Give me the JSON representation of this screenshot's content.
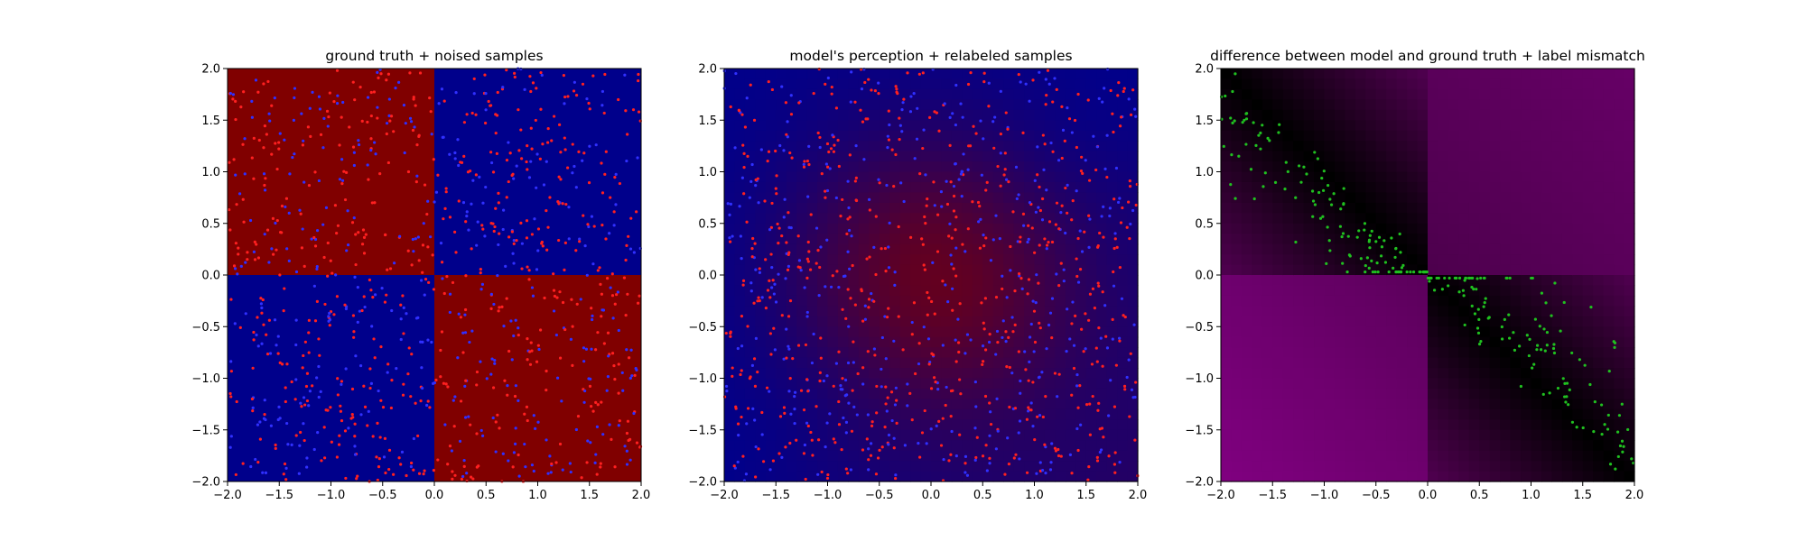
{
  "figure": {
    "background": "#ffffff"
  },
  "chart_data": [
    {
      "type": "heatmap",
      "title": "ground truth + noised samples",
      "xlim": [
        -2.0,
        2.0
      ],
      "ylim": [
        -2.0,
        2.0
      ],
      "x_ticks": [
        "−2.0",
        "−1.5",
        "−1.0",
        "−0.5",
        "0.0",
        "0.5",
        "1.0",
        "1.5",
        "2.0"
      ],
      "y_ticks": [
        "−2.0",
        "−1.5",
        "−1.0",
        "−0.5",
        "0.0",
        "0.5",
        "1.0",
        "1.5",
        "2.0"
      ],
      "grid": false,
      "background": {
        "kind": "checkerboard",
        "description_values": {
          "x<0,y>0": "red",
          "x>0,y>0": "blue",
          "x<0,y<0": "blue",
          "x>0,y<0": "red"
        },
        "colors": {
          "red": "#800000",
          "blue": "#00008b"
        }
      },
      "samples": {
        "count": 1000,
        "colors": [
          "#ff2020",
          "#3030ff"
        ],
        "distribution": "uniform over [-2,2]²"
      }
    },
    {
      "type": "heatmap",
      "title": "model's perception + relabeled samples",
      "xlim": [
        -2.0,
        2.0
      ],
      "ylim": [
        -2.0,
        2.0
      ],
      "x_ticks": [
        "−2.0",
        "−1.5",
        "−1.0",
        "−0.5",
        "0.0",
        "0.5",
        "1.0",
        "1.5",
        "2.0"
      ],
      "y_ticks": [
        "−2.0",
        "−1.5",
        "−1.0",
        "−0.5",
        "0.0",
        "0.5",
        "1.0",
        "1.5",
        "2.0"
      ],
      "grid": false,
      "background": {
        "kind": "smooth-gradient",
        "colors": {
          "low": "#00008b",
          "high": "#800000"
        }
      },
      "samples": {
        "count": 1000,
        "colors": [
          "#ff2020",
          "#3030ff"
        ],
        "distribution": "uniform over [-2,2]²"
      }
    },
    {
      "type": "heatmap",
      "title": "difference between model and ground truth + label mismatch",
      "xlim": [
        -2.0,
        2.0
      ],
      "ylim": [
        -2.0,
        2.0
      ],
      "x_ticks": [
        "−2.0",
        "−1.5",
        "−1.0",
        "−0.5",
        "0.0",
        "0.5",
        "1.0",
        "1.5",
        "2.0"
      ],
      "y_ticks": [
        "−2.0",
        "−1.5",
        "−1.0",
        "−0.5",
        "0.0",
        "0.5",
        "1.0",
        "1.5",
        "2.0"
      ],
      "grid": false,
      "background": {
        "kind": "difference-map",
        "colors": {
          "zero": "#000000",
          "max": "#800080"
        }
      },
      "samples": {
        "count": 260,
        "colors": [
          "#20c020"
        ],
        "distribution": "near the diagonal in quadrants x<0,y>0 and x>0,y<0"
      }
    }
  ]
}
